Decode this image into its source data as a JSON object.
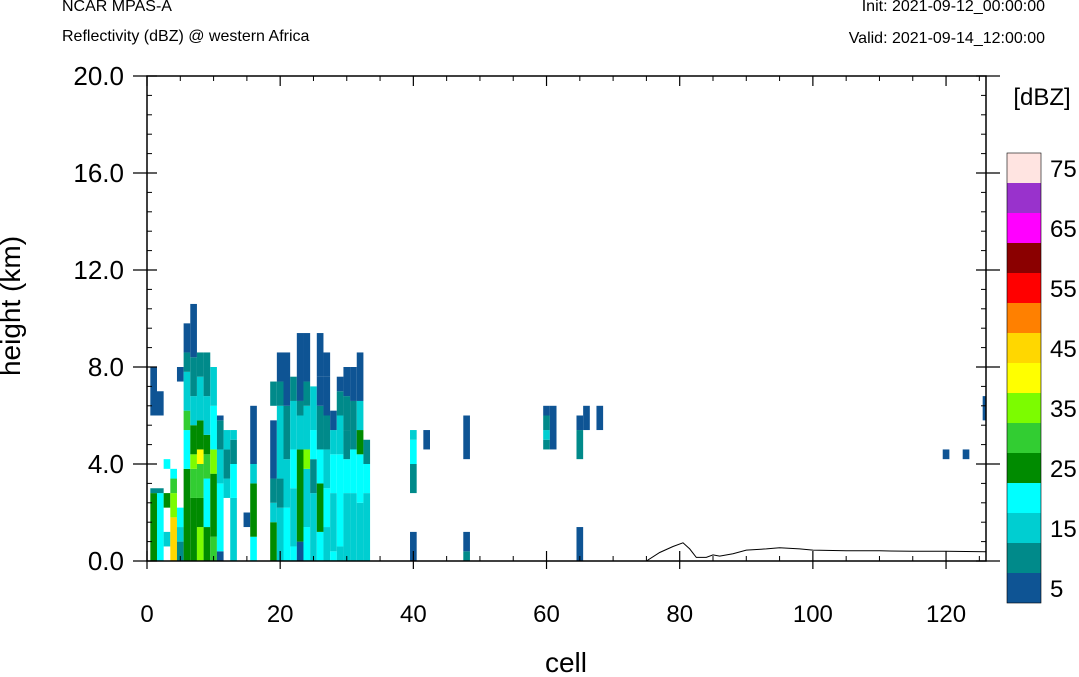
{
  "header": {
    "model": "NCAR MPAS-A",
    "subtitle": "Reflectivity (dBZ) @ western Africa",
    "init": "Init: 2021-09-12_00:00:00",
    "valid": "Valid: 2021-09-14_12:00:00"
  },
  "chart_data": {
    "type": "heatmap",
    "title": "Reflectivity (dBZ) @ western Africa",
    "xlabel": "cell",
    "ylabel": "height (km)",
    "xlim": [
      0,
      126
    ],
    "ylim": [
      0,
      20
    ],
    "x_ticks": [
      0,
      20,
      40,
      60,
      80,
      100,
      120
    ],
    "x_tick_labels": [
      "0",
      "20",
      "40",
      "60",
      "80",
      "100",
      "120"
    ],
    "y_ticks": [
      0,
      4,
      8,
      12,
      16,
      20
    ],
    "y_tick_labels": [
      "0.0",
      "4.0",
      "8.0",
      "12.0",
      "16.0",
      "20.0"
    ],
    "grid": false,
    "colorbar": {
      "units": "[dBZ]",
      "levels": [
        5,
        10,
        15,
        20,
        25,
        30,
        35,
        40,
        45,
        50,
        55,
        60,
        65,
        70,
        75
      ],
      "labels": [
        "5",
        "15",
        "25",
        "35",
        "45",
        "55",
        "65",
        "75"
      ],
      "colors": [
        "#0e5494",
        "#008a8a",
        "#00ced1",
        "#00ffff",
        "#008b00",
        "#32cd32",
        "#7cfc00",
        "#ffff00",
        "#ffd700",
        "#ff8000",
        "#ff0000",
        "#8b0000",
        "#ff00ff",
        "#9932cc",
        "#ffe4e1"
      ]
    },
    "columns": [
      {
        "x": 1,
        "cells": [
          [
            0,
            2.8,
            4
          ],
          [
            2.8,
            3.0,
            1
          ],
          [
            6.0,
            8.0,
            0
          ]
        ]
      },
      {
        "x": 2,
        "cells": [
          [
            0,
            2.8,
            3
          ],
          [
            2.8,
            3.0,
            1
          ],
          [
            6.0,
            7.0,
            0
          ]
        ]
      },
      {
        "x": 3,
        "cells": [
          [
            0.6,
            1.2,
            2
          ],
          [
            2.2,
            2.8,
            4
          ],
          [
            3.8,
            4.2,
            3
          ]
        ]
      },
      {
        "x": 4,
        "cells": [
          [
            0,
            1.8,
            8
          ],
          [
            1.8,
            2.8,
            6
          ],
          [
            2.8,
            3.4,
            5
          ],
          [
            3.4,
            3.8,
            3
          ]
        ]
      },
      {
        "x": 5,
        "cells": [
          [
            0,
            0.8,
            1
          ],
          [
            0.8,
            1.4,
            2
          ],
          [
            1.4,
            2.2,
            3
          ],
          [
            7.4,
            8.0,
            0
          ]
        ]
      },
      {
        "x": 6,
        "cells": [
          [
            0,
            3.8,
            4
          ],
          [
            3.8,
            5.4,
            3
          ],
          [
            5.4,
            6.2,
            5
          ],
          [
            6.2,
            7.8,
            2
          ],
          [
            7.8,
            8.6,
            1
          ],
          [
            8.6,
            9.8,
            0
          ]
        ]
      },
      {
        "x": 7,
        "cells": [
          [
            0,
            2.6,
            4
          ],
          [
            2.6,
            3.8,
            5
          ],
          [
            3.8,
            4.4,
            6
          ],
          [
            4.4,
            5.6,
            4
          ],
          [
            5.6,
            6.8,
            2
          ],
          [
            6.8,
            8.4,
            1
          ],
          [
            8.4,
            10.6,
            0
          ]
        ]
      },
      {
        "x": 8,
        "cells": [
          [
            0,
            1.4,
            6
          ],
          [
            1.4,
            2.6,
            4
          ],
          [
            2.6,
            4.0,
            5
          ],
          [
            4.0,
            4.6,
            7
          ],
          [
            4.6,
            5.8,
            4
          ],
          [
            5.8,
            7.6,
            2
          ],
          [
            7.6,
            8.6,
            1
          ]
        ]
      },
      {
        "x": 9,
        "cells": [
          [
            0,
            1.4,
            4
          ],
          [
            1.4,
            3.4,
            3
          ],
          [
            3.4,
            4.4,
            5
          ],
          [
            4.4,
            5.2,
            4
          ],
          [
            5.2,
            6.8,
            2
          ],
          [
            6.8,
            8.6,
            1
          ]
        ]
      },
      {
        "x": 10,
        "cells": [
          [
            0,
            1.0,
            5
          ],
          [
            1.0,
            3.6,
            4
          ],
          [
            3.6,
            4.6,
            6
          ],
          [
            4.6,
            6.4,
            3
          ],
          [
            6.4,
            8.0,
            2
          ]
        ]
      },
      {
        "x": 11,
        "cells": [
          [
            0,
            0.4,
            0
          ],
          [
            0.4,
            3.2,
            3
          ],
          [
            3.2,
            4.6,
            2
          ],
          [
            4.6,
            5.8,
            1
          ],
          [
            5.8,
            6.0,
            0
          ]
        ]
      },
      {
        "x": 12,
        "cells": [
          [
            2.6,
            3.4,
            2
          ],
          [
            3.4,
            4.6,
            1
          ],
          [
            4.6,
            5.4,
            2
          ]
        ]
      },
      {
        "x": 13,
        "cells": [
          [
            0,
            2.6,
            2
          ],
          [
            2.6,
            4.0,
            3
          ],
          [
            4.0,
            5.0,
            1
          ],
          [
            5.0,
            5.4,
            2
          ]
        ]
      },
      {
        "x": 15,
        "cells": [
          [
            1.4,
            2.0,
            0
          ]
        ]
      },
      {
        "x": 16,
        "cells": [
          [
            0,
            1.0,
            3
          ],
          [
            1.0,
            3.2,
            4
          ],
          [
            3.2,
            4.0,
            2
          ],
          [
            4.0,
            6.4,
            0
          ]
        ]
      },
      {
        "x": 19,
        "cells": [
          [
            0,
            1.6,
            4
          ],
          [
            1.6,
            2.4,
            2
          ],
          [
            2.4,
            3.4,
            1
          ],
          [
            3.4,
            5.8,
            0
          ],
          [
            6.4,
            7.4,
            1
          ]
        ]
      },
      {
        "x": 20,
        "cells": [
          [
            0,
            2.2,
            2
          ],
          [
            2.2,
            3.4,
            1
          ],
          [
            3.4,
            6.4,
            2
          ],
          [
            6.4,
            7.4,
            1
          ],
          [
            7.4,
            8.6,
            0
          ]
        ]
      },
      {
        "x": 21,
        "cells": [
          [
            0,
            2.2,
            3
          ],
          [
            2.2,
            4.2,
            2
          ],
          [
            4.2,
            6.4,
            1
          ],
          [
            6.4,
            8.6,
            0
          ]
        ]
      },
      {
        "x": 22,
        "cells": [
          [
            0,
            0.6,
            3
          ],
          [
            0.6,
            3.0,
            2
          ],
          [
            3.0,
            4.6,
            3
          ],
          [
            4.6,
            6.6,
            2
          ],
          [
            6.6,
            7.6,
            1
          ]
        ]
      },
      {
        "x": 23,
        "cells": [
          [
            0,
            0.8,
            0
          ],
          [
            0.8,
            4.6,
            4
          ],
          [
            4.6,
            6.0,
            2
          ],
          [
            6.0,
            6.6,
            1
          ],
          [
            6.6,
            9.4,
            0
          ]
        ]
      },
      {
        "x": 24,
        "cells": [
          [
            0,
            1.4,
            3
          ],
          [
            1.4,
            3.8,
            2
          ],
          [
            3.8,
            4.6,
            6
          ],
          [
            4.6,
            6.4,
            2
          ],
          [
            6.4,
            7.4,
            1
          ],
          [
            7.4,
            9.4,
            0
          ]
        ]
      },
      {
        "x": 25,
        "cells": [
          [
            0,
            2.8,
            2
          ],
          [
            2.8,
            4.2,
            1
          ],
          [
            4.2,
            5.4,
            3
          ],
          [
            5.4,
            7.2,
            2
          ]
        ]
      },
      {
        "x": 26,
        "cells": [
          [
            0,
            1.2,
            3
          ],
          [
            1.2,
            3.2,
            4
          ],
          [
            3.2,
            4.6,
            3
          ],
          [
            4.6,
            6.4,
            1
          ],
          [
            6.4,
            7.6,
            0
          ],
          [
            7.6,
            9.4,
            0
          ]
        ]
      },
      {
        "x": 27,
        "cells": [
          [
            0,
            1.4,
            2
          ],
          [
            1.4,
            3.0,
            3
          ],
          [
            3.0,
            4.6,
            2
          ],
          [
            4.6,
            6.0,
            1
          ],
          [
            6.0,
            7.6,
            0
          ],
          [
            7.6,
            8.6,
            0
          ]
        ]
      },
      {
        "x": 28,
        "cells": [
          [
            0,
            0.4,
            3
          ],
          [
            0.4,
            2.8,
            2
          ],
          [
            2.8,
            4.4,
            3
          ],
          [
            4.4,
            5.4,
            2
          ],
          [
            5.4,
            6.2,
            0
          ]
        ]
      },
      {
        "x": 29,
        "cells": [
          [
            0,
            0.6,
            2
          ],
          [
            0.6,
            4.4,
            3
          ],
          [
            4.4,
            6.0,
            2
          ],
          [
            6.0,
            7.0,
            1
          ],
          [
            7.0,
            7.6,
            0
          ]
        ]
      },
      {
        "x": 30,
        "cells": [
          [
            0,
            2.8,
            2
          ],
          [
            2.8,
            4.2,
            3
          ],
          [
            4.2,
            5.4,
            1
          ],
          [
            5.4,
            6.8,
            1
          ],
          [
            6.8,
            8.0,
            0
          ]
        ]
      },
      {
        "x": 31,
        "cells": [
          [
            0,
            2.8,
            2
          ],
          [
            2.8,
            4.6,
            3
          ],
          [
            4.6,
            6.6,
            1
          ],
          [
            6.6,
            8.0,
            0
          ]
        ]
      },
      {
        "x": 32,
        "cells": [
          [
            0,
            2.4,
            2
          ],
          [
            2.4,
            4.4,
            3
          ],
          [
            4.4,
            5.4,
            4
          ],
          [
            5.4,
            6.6,
            2
          ],
          [
            6.6,
            8.6,
            0
          ]
        ]
      },
      {
        "x": 33,
        "cells": [
          [
            0,
            2.8,
            2
          ],
          [
            2.8,
            4.0,
            3
          ],
          [
            4.0,
            5.0,
            1
          ]
        ]
      },
      {
        "x": 40,
        "cells": [
          [
            0,
            1.2,
            0
          ],
          [
            2.8,
            4.0,
            1
          ],
          [
            4.0,
            5.0,
            3
          ],
          [
            5.0,
            5.4,
            2
          ]
        ]
      },
      {
        "x": 42,
        "cells": [
          [
            4.6,
            5.4,
            0
          ]
        ]
      },
      {
        "x": 48,
        "cells": [
          [
            0,
            0.4,
            1
          ],
          [
            0.4,
            1.2,
            0
          ],
          [
            4.2,
            6.0,
            0
          ]
        ]
      },
      {
        "x": 60,
        "cells": [
          [
            4.6,
            5.0,
            1
          ],
          [
            5.0,
            5.4,
            2
          ],
          [
            5.4,
            6.0,
            1
          ],
          [
            6.0,
            6.4,
            0
          ]
        ]
      },
      {
        "x": 61,
        "cells": [
          [
            4.6,
            6.4,
            0
          ]
        ]
      },
      {
        "x": 65,
        "cells": [
          [
            0,
            1.4,
            0
          ],
          [
            4.2,
            5.4,
            1
          ],
          [
            5.4,
            6.0,
            0
          ]
        ]
      },
      {
        "x": 66,
        "cells": [
          [
            5.4,
            6.4,
            0
          ]
        ]
      },
      {
        "x": 68,
        "cells": [
          [
            5.4,
            6.4,
            0
          ]
        ]
      },
      {
        "x": 120,
        "cells": [
          [
            4.2,
            4.6,
            0
          ]
        ]
      },
      {
        "x": 123,
        "cells": [
          [
            4.2,
            4.6,
            0
          ]
        ]
      },
      {
        "x": 126,
        "cells": [
          [
            5.8,
            6.8,
            0
          ]
        ]
      }
    ],
    "terrain": [
      [
        0,
        0
      ],
      [
        75,
        0
      ],
      [
        77,
        0.35
      ],
      [
        79,
        0.6
      ],
      [
        80.5,
        0.75
      ],
      [
        81.5,
        0.5
      ],
      [
        82.5,
        0.15
      ],
      [
        84,
        0.15
      ],
      [
        85,
        0.25
      ],
      [
        86,
        0.2
      ],
      [
        88,
        0.3
      ],
      [
        90,
        0.45
      ],
      [
        93,
        0.5
      ],
      [
        95,
        0.55
      ],
      [
        98,
        0.5
      ],
      [
        100,
        0.45
      ],
      [
        105,
        0.42
      ],
      [
        110,
        0.42
      ],
      [
        115,
        0.4
      ],
      [
        120,
        0.4
      ],
      [
        126,
        0.38
      ]
    ]
  }
}
